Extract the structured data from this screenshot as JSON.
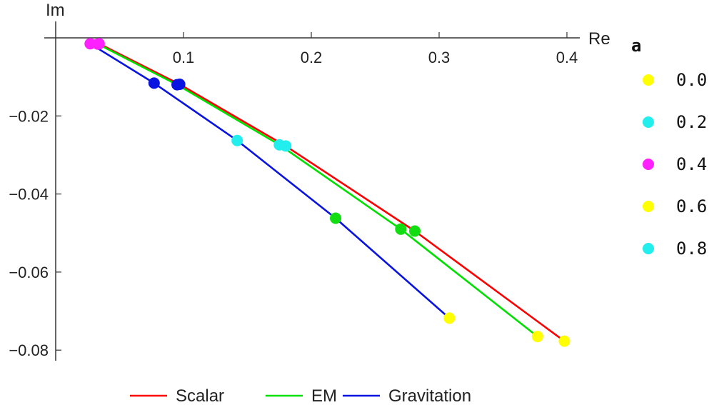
{
  "chart_data": {
    "type": "line",
    "x_axis": {
      "label": "Re",
      "ticks": [
        0.1,
        0.2,
        0.3,
        0.4
      ],
      "tick_labels": [
        "0.1",
        "0.2",
        "0.3",
        "0.4"
      ],
      "range": [
        -0.01,
        0.4
      ]
    },
    "y_axis": {
      "label": "Im",
      "ticks": [
        -0.02,
        -0.04,
        -0.06,
        -0.08
      ],
      "tick_labels": [
        "−0.02",
        "−0.04",
        "−0.06",
        "−0.08"
      ],
      "range": [
        -0.082,
        0.002
      ]
    },
    "series": [
      {
        "name": "Scalar",
        "color": "#ff0000",
        "points": [
          {
            "a": "0.4",
            "x": 0.034,
            "y": -0.0015
          },
          {
            "a": "0.0",
            "x": 0.097,
            "y": -0.0119
          },
          {
            "a": "0.2",
            "x": 0.18,
            "y": -0.0277
          },
          {
            "a": "0.6",
            "x": 0.281,
            "y": -0.0495
          },
          {
            "a": "0.8",
            "x": 0.398,
            "y": -0.0777
          }
        ]
      },
      {
        "name": "EM",
        "color": "#00e000",
        "points": [
          {
            "a": "0.4",
            "x": 0.033,
            "y": -0.0016
          },
          {
            "a": "0.0",
            "x": 0.095,
            "y": -0.012
          },
          {
            "a": "0.2",
            "x": 0.175,
            "y": -0.0274
          },
          {
            "a": "0.6",
            "x": 0.27,
            "y": -0.049
          },
          {
            "a": "0.8",
            "x": 0.377,
            "y": -0.0765
          }
        ]
      },
      {
        "name": "Gravitation",
        "color": "#0a14e0",
        "points": [
          {
            "a": "0.4",
            "x": 0.027,
            "y": -0.0015
          },
          {
            "a": "0.0",
            "x": 0.077,
            "y": -0.0116
          },
          {
            "a": "0.2",
            "x": 0.142,
            "y": -0.0263
          },
          {
            "a": "0.6",
            "x": 0.219,
            "y": -0.0462
          },
          {
            "a": "0.8",
            "x": 0.308,
            "y": -0.0718
          }
        ]
      }
    ],
    "point_legend": {
      "title": "a",
      "entries": [
        {
          "label": "0.0",
          "color": "#ffff00"
        },
        {
          "label": "0.2",
          "color": "#22eeee"
        },
        {
          "label": "0.4",
          "color": "#ff20ff"
        },
        {
          "label": "0.6",
          "color": "#ffff00"
        },
        {
          "label": "0.8",
          "color": "#22eeee"
        }
      ]
    },
    "marker_colors_by_index": [
      "#ff20ff",
      "#0a14e0",
      "#22eeee",
      "#11dd11",
      "#ffff00"
    ],
    "legend_position": "bottom",
    "grid": false
  }
}
